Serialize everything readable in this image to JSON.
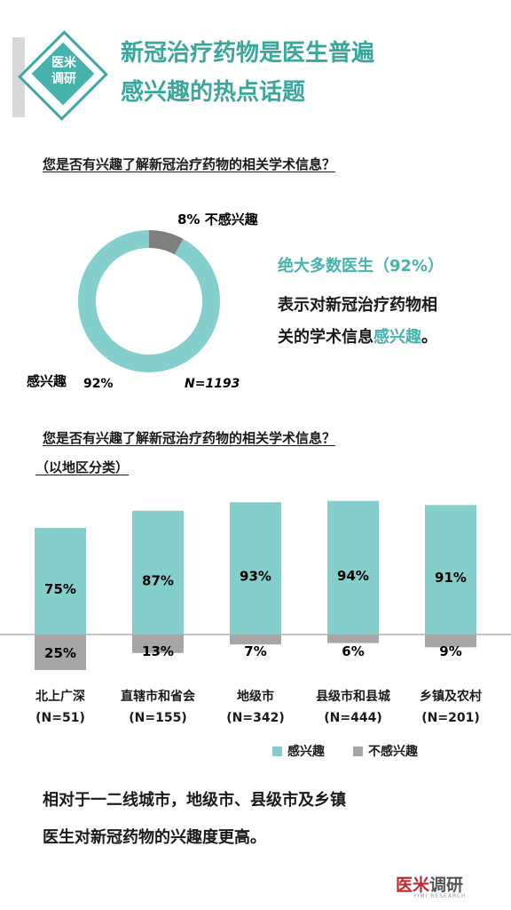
{
  "header": {
    "badge_line1": "医米",
    "badge_line2": "调研",
    "title_line1": "新冠治疗药物是医生普遍",
    "title_line2": "感兴趣的热点话题"
  },
  "section1": {
    "question": "您是否有兴趣了解新冠治疗药物的相关学术信息？",
    "not_interested_label": "8%  不感兴趣",
    "interested_label": "感兴趣",
    "interested_pct": "92%",
    "n_label": "N=1193",
    "note_highlight": "绝大多数医生（92%）",
    "note_line2": "表示对新冠治疗药物相",
    "note_line3_a": "关的学术信息",
    "note_line3_b": "感兴趣",
    "note_line3_c": "。"
  },
  "section2": {
    "question": "您是否有兴趣了解新冠治疗药物的相关学术信息？",
    "subtitle": "（以地区分类）"
  },
  "legend": {
    "interested": "感兴趣",
    "not_interested": "不感兴趣"
  },
  "conclusion": {
    "line1": "相对于一二线城市，地级市、县级市及乡镇",
    "line2": "医生对新冠药物的兴趣度更高。"
  },
  "logo": {
    "red": "医米",
    "gray": "调研",
    "sub": "YIMI RESEARCH"
  },
  "colors": {
    "interested": "#84cfcb",
    "not_interested": "#a6a6a6",
    "accent": "#45b3aa"
  },
  "chart_data": [
    {
      "type": "pie",
      "labels": [
        "不感兴趣",
        "感兴趣"
      ],
      "values": [
        8,
        92
      ],
      "colors": [
        "#7f7f7f",
        "#84cfcb"
      ],
      "note": "N=1193"
    },
    {
      "type": "bar",
      "categories": [
        "北上广深",
        "直辖市和省会",
        "地级市",
        "县级市和县城",
        "乡镇及农村"
      ],
      "category_n": [
        "(N=51)",
        "(N=155)",
        "(N=342)",
        "(N=444)",
        "(N=201)"
      ],
      "series": [
        {
          "name": "感兴趣",
          "values": [
            75,
            87,
            93,
            94,
            91
          ],
          "labels": [
            "75%",
            "87%",
            "93%",
            "94%",
            "91%"
          ]
        },
        {
          "name": "不感兴趣",
          "values": [
            25,
            13,
            7,
            6,
            9
          ],
          "labels": [
            "25%",
            "13%",
            "7%",
            "6%",
            "9%"
          ]
        }
      ],
      "ylim": [
        -25,
        100
      ]
    }
  ]
}
